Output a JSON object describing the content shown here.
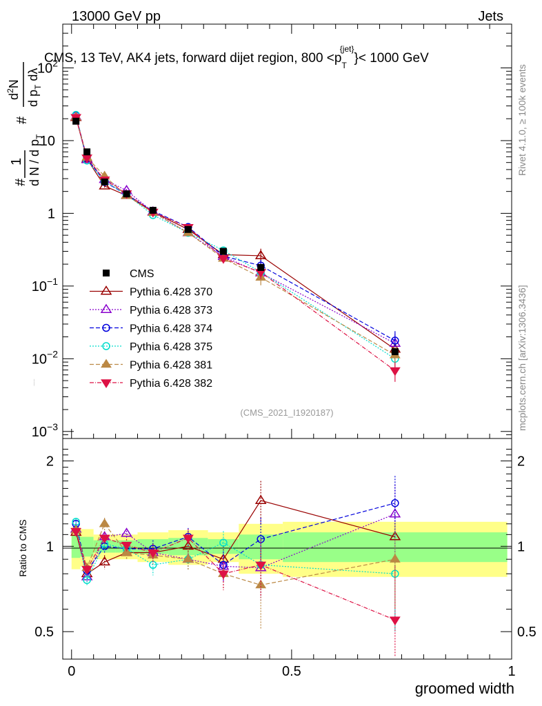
{
  "header": {
    "left": "13000 GeV pp",
    "right": "Jets"
  },
  "chart_data": {
    "type": "scatter",
    "title": "CMS, 13 TeV, AK4 jets, forward dijet region, 800 <p",
    "title_sup": "{jet}",
    "title_sub": "T",
    "title_end": "}< 1000 GeV",
    "ylabel_main": "1/N dN/dpT d²N/dpT dλ",
    "xlabel": "groomed width",
    "ratio_ylabel": "Ratio to CMS",
    "side_left": "Rivet 4.1.0, ≥ 100k events",
    "side_right": "mcplots.cern.ch [arXiv:1306.3436]",
    "analysis_id": "(CMS_2021_I1920187)",
    "xlim": [
      -0.02,
      1.0
    ],
    "ylim_main": [
      0.0008,
      400
    ],
    "ylim_ratio": [
      0.4,
      2.4
    ],
    "x_ticks": [
      {
        "v": 0,
        "label": "0"
      },
      {
        "v": 0.5,
        "label": "0.5"
      },
      {
        "v": 1,
        "label": "1"
      }
    ],
    "y_ticks_main": [
      {
        "v": 0.001,
        "base": "10",
        "exp": "−3"
      },
      {
        "v": 0.01,
        "base": "10",
        "exp": "−2"
      },
      {
        "v": 0.1,
        "base": "10",
        "exp": "−1"
      },
      {
        "v": 1,
        "base": "1",
        "exp": ""
      },
      {
        "v": 10,
        "base": "10",
        "exp": ""
      },
      {
        "v": 100,
        "base": "10",
        "exp": "2"
      }
    ],
    "y_ticks_ratio": [
      {
        "v": 0.5,
        "label": "0.5"
      },
      {
        "v": 1,
        "label": "1"
      },
      {
        "v": 2,
        "label": "2"
      }
    ],
    "x": [
      0.01,
      0.035,
      0.075,
      0.125,
      0.185,
      0.265,
      0.345,
      0.43,
      0.735
    ],
    "bins": [
      [
        0,
        0.02
      ],
      [
        0.02,
        0.05
      ],
      [
        0.05,
        0.1
      ],
      [
        0.1,
        0.15
      ],
      [
        0.15,
        0.22
      ],
      [
        0.22,
        0.31
      ],
      [
        0.31,
        0.38
      ],
      [
        0.38,
        0.48
      ],
      [
        0.48,
        0.99
      ]
    ],
    "cms": [
      18.5,
      7.0,
      2.7,
      1.85,
      1.1,
      0.6,
      0.3,
      0.18,
      0.0125
    ],
    "band_green": [
      0.09,
      0.08,
      0.05,
      0.05,
      0.06,
      0.07,
      0.06,
      0.1,
      0.12
    ],
    "band_yellow": [
      0.17,
      0.15,
      0.1,
      0.1,
      0.12,
      0.14,
      0.12,
      0.2,
      0.22
    ],
    "series": [
      {
        "name": "Pythia 6.428 370",
        "color": "#990000",
        "dash": "",
        "marker": "tri-up-open",
        "ratio": [
          1.12,
          0.8,
          0.88,
          0.95,
          0.95,
          1.0,
          0.9,
          1.45,
          1.08
        ],
        "err": [
          0.03,
          0.03,
          0.05,
          0.05,
          0.07,
          0.08,
          0.1,
          0.25,
          0.3
        ]
      },
      {
        "name": "Pythia 6.428 373",
        "color": "#8800cc",
        "dash": "2,2",
        "marker": "tri-up-open",
        "ratio": [
          1.15,
          0.78,
          1.08,
          1.11,
          0.95,
          0.9,
          0.85,
          0.84,
          1.3
        ],
        "err": [
          0.03,
          0.03,
          0.05,
          0.05,
          0.07,
          0.08,
          0.1,
          0.2,
          0.35
        ]
      },
      {
        "name": "Pythia 6.428 374",
        "color": "#0000dd",
        "dash": "6,3",
        "marker": "circle-open",
        "ratio": [
          1.2,
          0.82,
          1.0,
          0.98,
          0.98,
          1.08,
          0.86,
          1.06,
          1.42
        ],
        "err": [
          0.03,
          0.03,
          0.05,
          0.05,
          0.07,
          0.08,
          0.1,
          0.2,
          0.35
        ]
      },
      {
        "name": "Pythia 6.428 375",
        "color": "#00ddcc",
        "dash": "2,2",
        "marker": "circle-open",
        "ratio": [
          1.22,
          0.76,
          1.02,
          0.98,
          0.86,
          0.9,
          1.03,
          0.86,
          0.8
        ],
        "err": [
          0.03,
          0.03,
          0.05,
          0.05,
          0.07,
          0.08,
          0.1,
          0.2,
          0.3
        ]
      },
      {
        "name": "Pythia 6.428 381",
        "color": "#bb8844",
        "dash": "6,3",
        "marker": "tri-up-filled",
        "ratio": [
          1.14,
          0.84,
          1.2,
          0.95,
          0.93,
          0.9,
          0.8,
          0.73,
          0.9
        ],
        "err": [
          0.03,
          0.03,
          0.06,
          0.05,
          0.07,
          0.08,
          0.1,
          0.22,
          0.3
        ]
      },
      {
        "name": "Pythia 6.428 382",
        "color": "#dd1144",
        "dash": "6,2,1,2",
        "marker": "tri-down-filled",
        "ratio": [
          1.13,
          0.83,
          1.07,
          1.01,
          0.95,
          1.07,
          0.8,
          0.86,
          0.55
        ],
        "err": [
          0.03,
          0.03,
          0.05,
          0.05,
          0.07,
          0.08,
          0.1,
          0.2,
          0.3
        ]
      }
    ],
    "legend_cms": "CMS"
  }
}
